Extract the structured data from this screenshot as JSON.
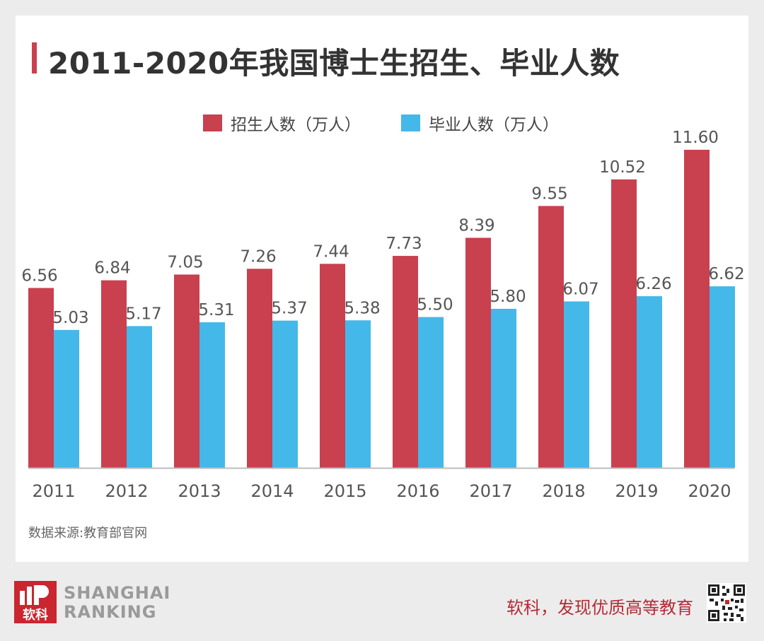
{
  "title": "2011-2020年我国博士生招生、毕业人数",
  "source": "数据来源:教育部官网",
  "brand": {
    "logo_text": "软科",
    "name_line1": "SHANGHAI",
    "name_line2": "RANKING",
    "slogan": "软科，发现优质高等教育"
  },
  "colors": {
    "enrollment": "#c9404f",
    "graduation": "#44b8e8",
    "accent": "#c9404f",
    "brand": "#c9262f"
  },
  "chart_data": {
    "type": "bar",
    "title": "2011-2020年我国博士生招生、毕业人数",
    "categories": [
      "2011",
      "2012",
      "2013",
      "2014",
      "2015",
      "2016",
      "2017",
      "2018",
      "2019",
      "2020"
    ],
    "series": [
      {
        "name": "招生人数（万人）",
        "values": [
          6.56,
          6.84,
          7.05,
          7.26,
          7.44,
          7.73,
          8.39,
          9.55,
          10.52,
          11.6
        ],
        "labels": [
          "6.56",
          "6.84",
          "7.05",
          "7.26",
          "7.44",
          "7.73",
          "8.39",
          "9.55",
          "10.52",
          "11.60"
        ]
      },
      {
        "name": "毕业人数（万人）",
        "values": [
          5.03,
          5.17,
          5.31,
          5.37,
          5.38,
          5.5,
          5.8,
          6.07,
          6.26,
          6.62
        ],
        "labels": [
          "5.03",
          "5.17",
          "5.31",
          "5.37",
          "5.38",
          "5.50",
          "5.80",
          "6.07",
          "6.26",
          "6.62"
        ]
      }
    ],
    "ylim": [
      0,
      12
    ],
    "grid": false,
    "legend": "top-center"
  }
}
